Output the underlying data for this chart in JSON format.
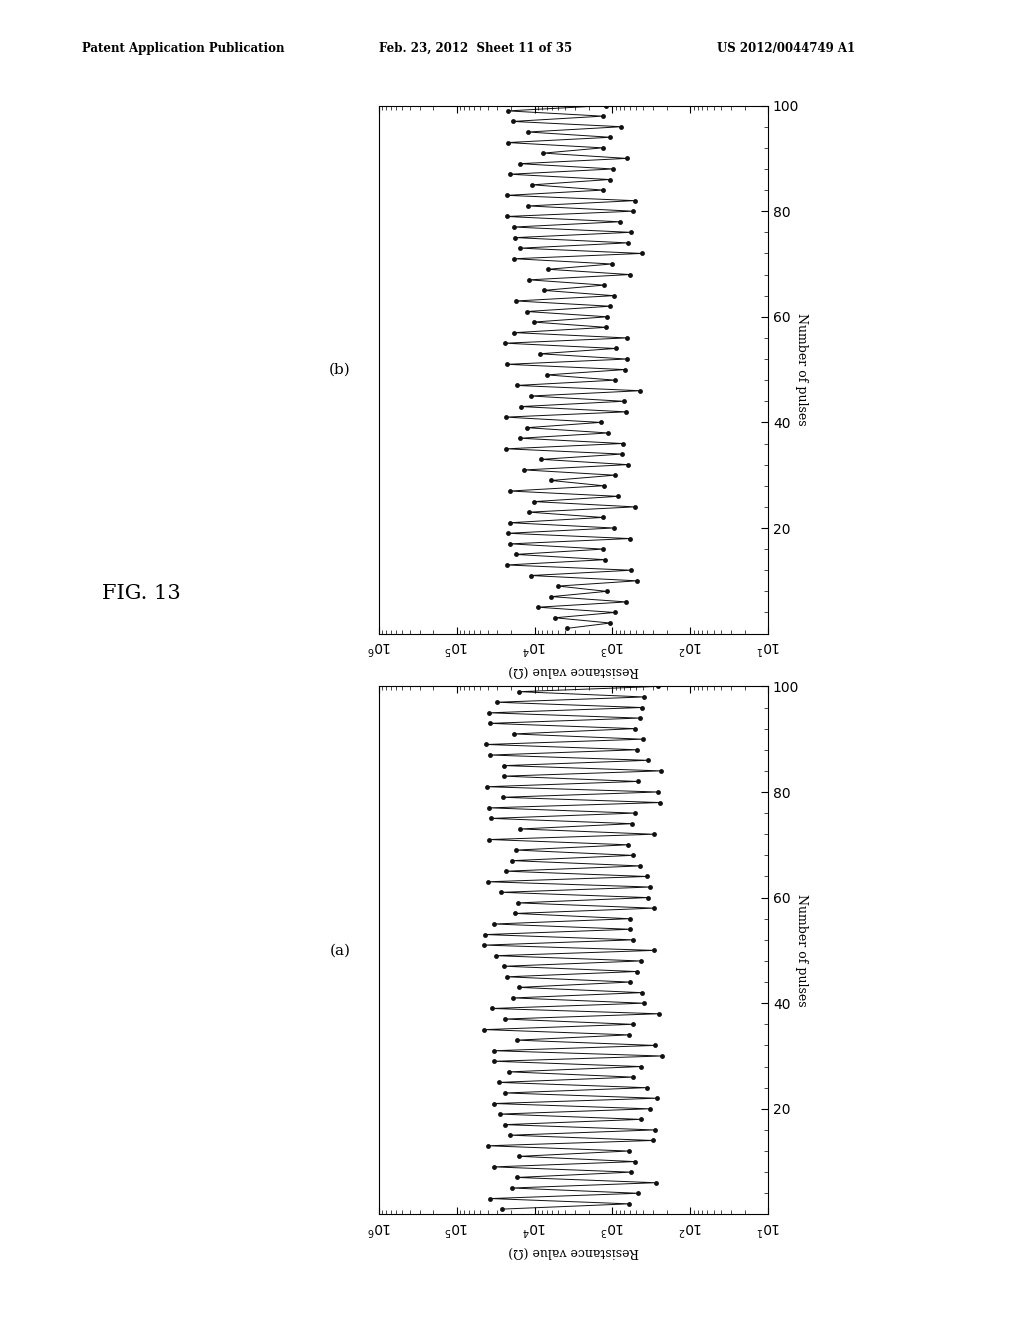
{
  "fig_label": "FIG. 13",
  "header_left": "Patent Application Publication",
  "header_mid": "Feb. 23, 2012  Sheet 11 of 35",
  "header_right": "US 2012/0044749 A1",
  "subplot_label_a": "(a)",
  "subplot_label_b": "(b)",
  "xlabel": "Number of pulses",
  "ylabel": "Resistance value (Ω)",
  "xlim": [
    0,
    100
  ],
  "n_cycles": 50,
  "high_resistance_a": 25000,
  "low_resistance_a": 350,
  "high_resistance_b": 12000,
  "low_resistance_b": 800,
  "dot_color": "#111111",
  "line_color": "#111111",
  "bg_color": "#ffffff"
}
